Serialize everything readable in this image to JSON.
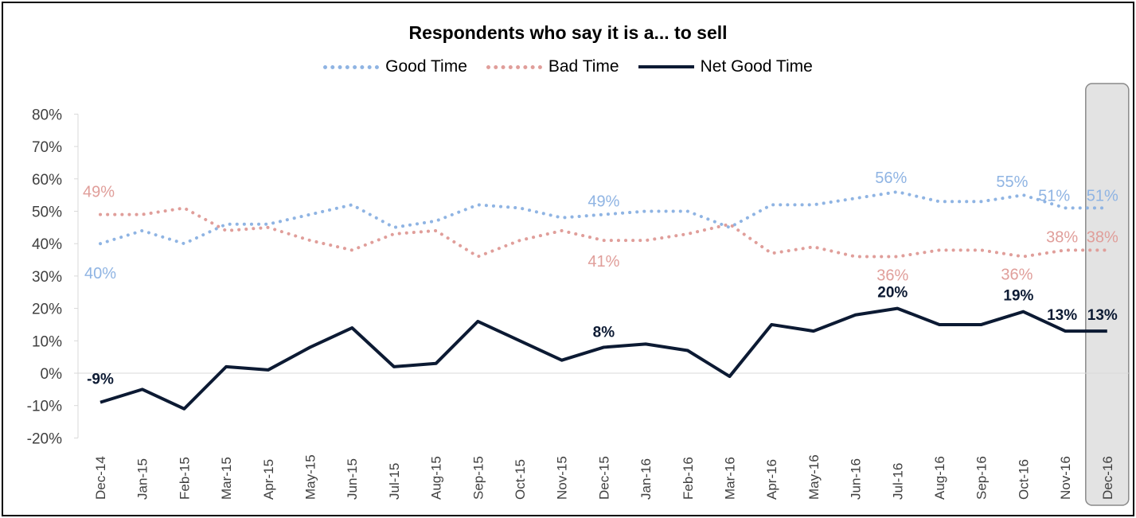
{
  "chart_data": {
    "type": "line",
    "title": "Respondents who say it is a... to sell",
    "xlabel": "",
    "ylabel": "",
    "ylim": [
      -20,
      80
    ],
    "y_ticks": [
      -20,
      -10,
      0,
      10,
      20,
      30,
      40,
      50,
      60,
      70,
      80
    ],
    "y_tick_labels": [
      "-20%",
      "-10%",
      "0%",
      "10%",
      "20%",
      "30%",
      "40%",
      "50%",
      "60%",
      "70%",
      "80%"
    ],
    "categories": [
      "Dec-14",
      "Jan-15",
      "Feb-15",
      "Mar-15",
      "Apr-15",
      "May-15",
      "Jun-15",
      "Jul-15",
      "Aug-15",
      "Sep-15",
      "Oct-15",
      "Nov-15",
      "Dec-15",
      "Jan-16",
      "Feb-16",
      "Mar-16",
      "Apr-16",
      "May-16",
      "Jun-16",
      "Jul-16",
      "Aug-16",
      "Sep-16",
      "Oct-16",
      "Nov-16",
      "Dec-16"
    ],
    "highlighted_category": "Dec-16",
    "legend_position": "top-center",
    "grid": false,
    "series": [
      {
        "name": "Good Time",
        "color": "#8fb4e3",
        "style": "dotted",
        "values": [
          40,
          44,
          40,
          46,
          46,
          49,
          52,
          45,
          47,
          52,
          51,
          48,
          49,
          50,
          50,
          45,
          52,
          52,
          54,
          56,
          53,
          53,
          55,
          51,
          51
        ],
        "labels": [
          {
            "index": 0,
            "text": "40%"
          },
          {
            "index": 12,
            "text": "49%"
          },
          {
            "index": 19,
            "text": "56%"
          },
          {
            "index": 22,
            "text": "55%"
          },
          {
            "index": 23,
            "text": "51%"
          },
          {
            "index": 24,
            "text": "51%"
          }
        ]
      },
      {
        "name": "Bad Time",
        "color": "#e09e9a",
        "style": "dotted",
        "values": [
          49,
          49,
          51,
          44,
          45,
          41,
          38,
          43,
          44,
          36,
          41,
          44,
          41,
          41,
          43,
          46,
          37,
          39,
          36,
          36,
          38,
          38,
          36,
          38,
          38
        ],
        "labels": [
          {
            "index": 0,
            "text": "49%"
          },
          {
            "index": 12,
            "text": "41%"
          },
          {
            "index": 19,
            "text": "36%"
          },
          {
            "index": 22,
            "text": "36%"
          },
          {
            "index": 23,
            "text": "38%"
          },
          {
            "index": 24,
            "text": "38%"
          }
        ]
      },
      {
        "name": "Net Good Time",
        "color": "#0c1a33",
        "style": "solid",
        "values": [
          -9,
          -5,
          -11,
          2,
          1,
          8,
          14,
          2,
          3,
          16,
          10,
          4,
          8,
          9,
          7,
          -1,
          15,
          13,
          18,
          20,
          15,
          15,
          19,
          13,
          13
        ],
        "labels": [
          {
            "index": 0,
            "text": "-9%"
          },
          {
            "index": 12,
            "text": "8%"
          },
          {
            "index": 19,
            "text": "20%"
          },
          {
            "index": 22,
            "text": "19%"
          },
          {
            "index": 23,
            "text": "13%"
          },
          {
            "index": 24,
            "text": "13%"
          }
        ]
      }
    ]
  }
}
